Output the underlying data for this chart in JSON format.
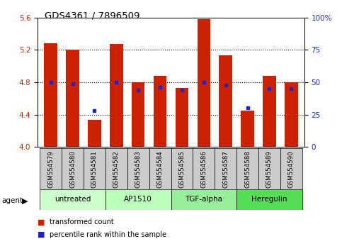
{
  "title": "GDS4361 / 7896509",
  "samples": [
    "GSM554579",
    "GSM554580",
    "GSM554581",
    "GSM554582",
    "GSM554583",
    "GSM554584",
    "GSM554585",
    "GSM554586",
    "GSM554587",
    "GSM554588",
    "GSM554589",
    "GSM554590"
  ],
  "red_values": [
    5.28,
    5.2,
    4.33,
    5.27,
    4.8,
    4.88,
    4.73,
    5.58,
    5.13,
    4.45,
    4.88,
    4.8
  ],
  "blue_values": [
    4.8,
    4.78,
    4.45,
    4.8,
    4.7,
    4.74,
    4.7,
    4.8,
    4.76,
    4.48,
    4.72,
    4.72
  ],
  "ylim_left": [
    4.0,
    5.6
  ],
  "ylim_right": [
    0,
    100
  ],
  "yticks_left": [
    4.0,
    4.4,
    4.8,
    5.2,
    5.6
  ],
  "yticks_right": [
    0,
    25,
    50,
    75,
    100
  ],
  "ytick_labels_right": [
    "0",
    "25",
    "50",
    "75",
    "100%"
  ],
  "grid_lines": [
    4.4,
    4.8,
    5.2
  ],
  "bar_color": "#cc2200",
  "dot_color": "#2222cc",
  "bar_width": 0.6,
  "legend_red": "transformed count",
  "legend_blue": "percentile rank within the sample",
  "agent_label": "agent",
  "tick_box_color": "#cccccc",
  "group_colors": [
    "#ccffcc",
    "#bbffbb",
    "#99ee99",
    "#55dd55"
  ],
  "groups": [
    {
      "label": "untreated",
      "start": 0,
      "end": 3
    },
    {
      "label": "AP1510",
      "start": 3,
      "end": 6
    },
    {
      "label": "TGF-alpha",
      "start": 6,
      "end": 9
    },
    {
      "label": "Heregulin",
      "start": 9,
      "end": 12
    }
  ]
}
